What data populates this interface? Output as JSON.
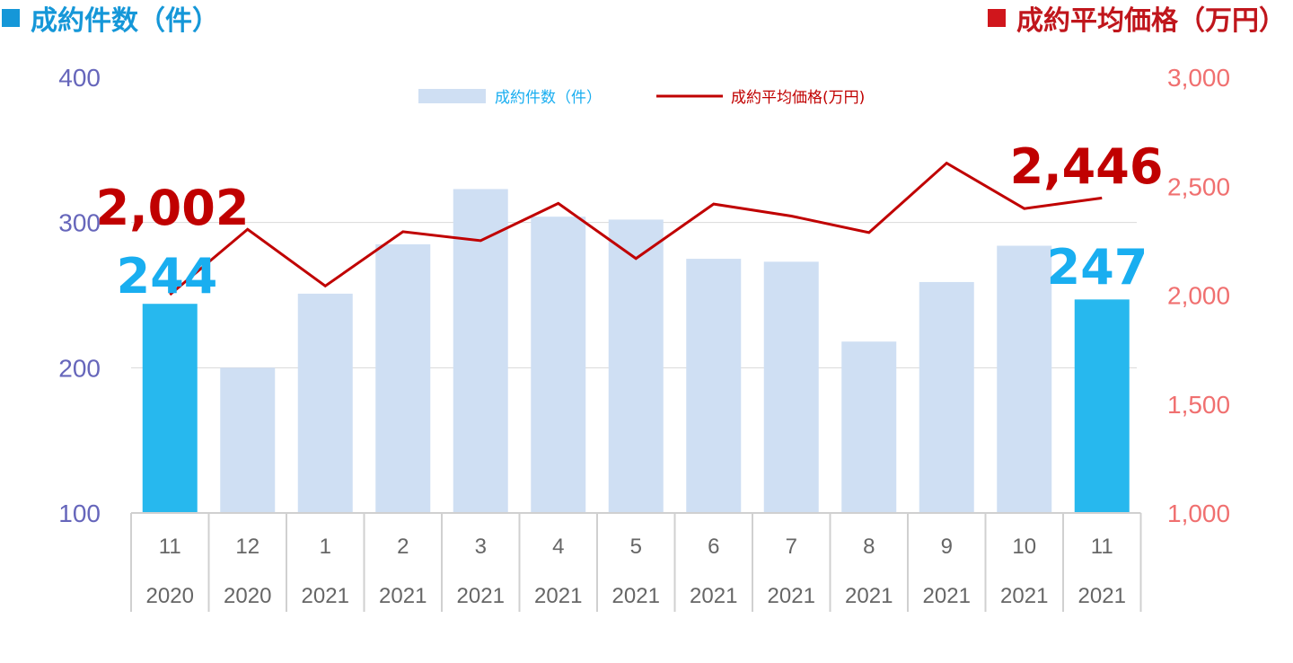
{
  "header": {
    "left_title": "成約件数（件）",
    "right_title": "成約平均価格（万円）"
  },
  "chart_data": {
    "type": "bar+line",
    "categories": [
      {
        "month": "11",
        "year": "2020"
      },
      {
        "month": "12",
        "year": "2020"
      },
      {
        "month": "1",
        "year": "2021"
      },
      {
        "month": "2",
        "year": "2021"
      },
      {
        "month": "3",
        "year": "2021"
      },
      {
        "month": "4",
        "year": "2021"
      },
      {
        "month": "5",
        "year": "2021"
      },
      {
        "month": "6",
        "year": "2021"
      },
      {
        "month": "7",
        "year": "2021"
      },
      {
        "month": "8",
        "year": "2021"
      },
      {
        "month": "9",
        "year": "2021"
      },
      {
        "month": "10",
        "year": "2021"
      },
      {
        "month": "11",
        "year": "2021"
      }
    ],
    "series": [
      {
        "name": "成約件数（件）",
        "kind": "bar",
        "axis": "left",
        "values": [
          244,
          200,
          251,
          285,
          323,
          304,
          302,
          275,
          273,
          218,
          259,
          284,
          247
        ],
        "highlight_indices": [
          0,
          12
        ]
      },
      {
        "name": "成約平均価格(万円)",
        "kind": "line",
        "axis": "right",
        "values": [
          2002,
          2302,
          2042,
          2291,
          2250,
          2421,
          2168,
          2418,
          2363,
          2287,
          2606,
          2397,
          2446
        ]
      }
    ],
    "left_axis": {
      "min": 100,
      "max": 400,
      "ticks": [
        "100",
        "200",
        "300",
        "400"
      ]
    },
    "right_axis": {
      "min": 1000,
      "max": 3000,
      "ticks": [
        "1,000",
        "1,500",
        "2,000",
        "2,500",
        "3,000"
      ]
    },
    "callouts": [
      {
        "text": "2,002",
        "series": "line",
        "index": 0
      },
      {
        "text": "244",
        "series": "bar",
        "index": 0
      },
      {
        "text": "2,446",
        "series": "line",
        "index": 12
      },
      {
        "text": "247",
        "series": "bar",
        "index": 12
      }
    ],
    "legend": {
      "position": "top-center"
    },
    "grid": true,
    "colors": {
      "bar": "#cfdff3",
      "bar_highlight": "#27b8ee",
      "line": "#c00000",
      "left_axis": "#6666bb",
      "right_axis": "#f07070",
      "grid": "#d9d9d9",
      "callout_line": "#c00000",
      "callout_bar": "#19aef0"
    }
  }
}
